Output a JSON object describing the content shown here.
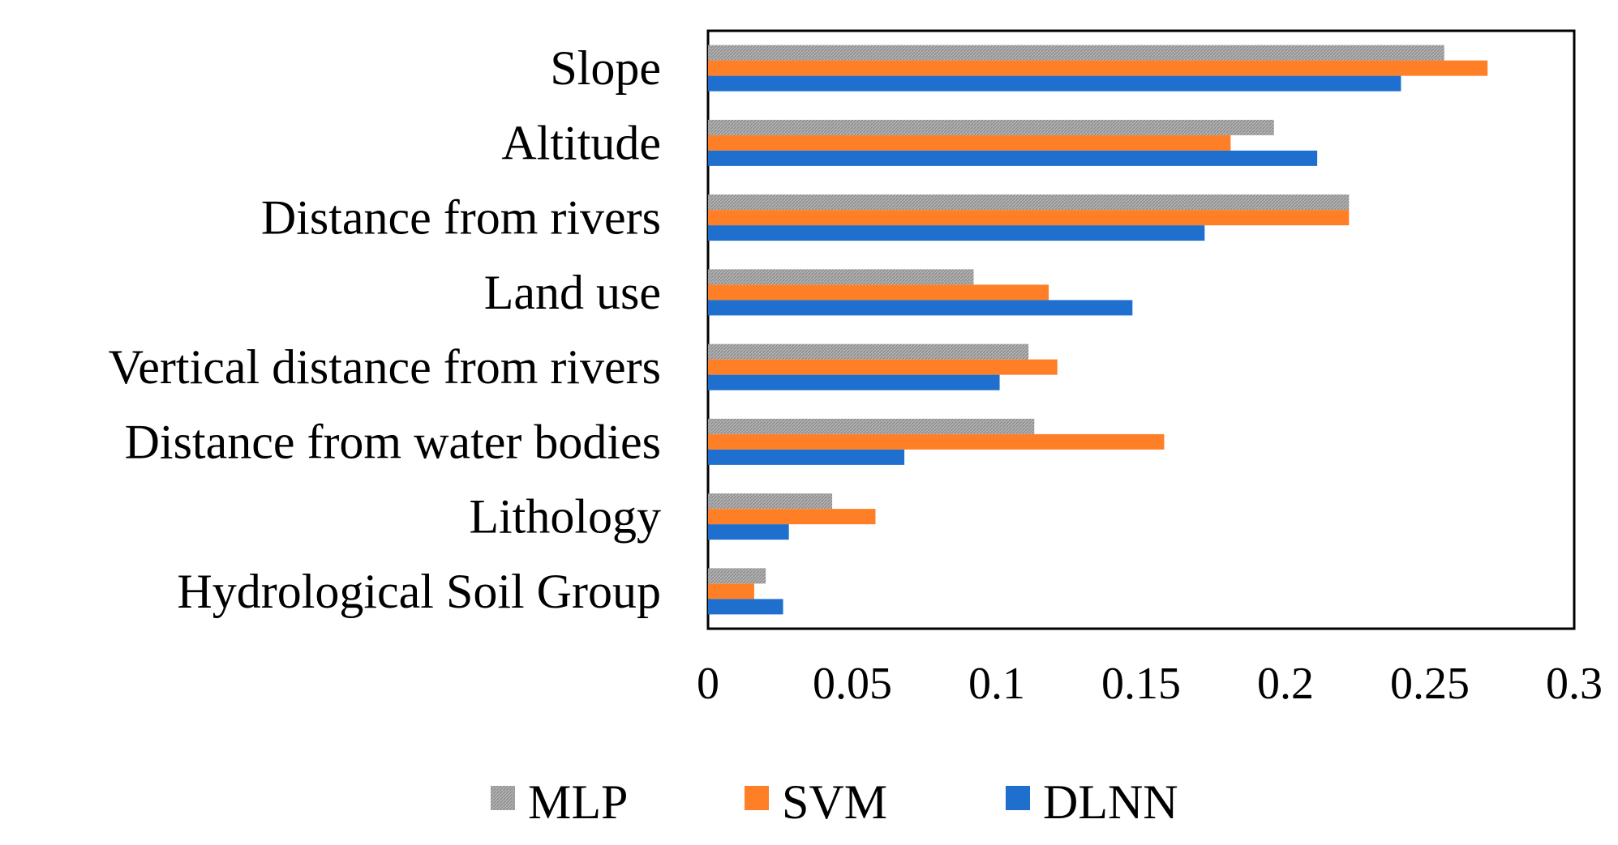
{
  "chart_data": {
    "type": "bar",
    "orientation": "horizontal",
    "title": "",
    "xlabel": "",
    "ylabel": "",
    "categories": [
      "Slope",
      "Altitude",
      "Distance from rivers",
      "Land use",
      "Vertical distance from rivers",
      "Distance from water bodies",
      "Lithology",
      "Hydrological Soil Group"
    ],
    "series": [
      {
        "name": "MLP",
        "color": "#a6a6a6",
        "pattern": "hatched",
        "values": [
          0.255,
          0.196,
          0.222,
          0.092,
          0.111,
          0.113,
          0.043,
          0.02
        ]
      },
      {
        "name": "SVM",
        "color": "#ff7f27",
        "pattern": "solid",
        "values": [
          0.27,
          0.181,
          0.222,
          0.118,
          0.121,
          0.158,
          0.058,
          0.016
        ]
      },
      {
        "name": "DLNN",
        "color": "#1f6fce",
        "pattern": "solid",
        "values": [
          0.24,
          0.211,
          0.172,
          0.147,
          0.101,
          0.068,
          0.028,
          0.026
        ]
      }
    ],
    "xlim": [
      0,
      0.3
    ],
    "xticks": [
      "0",
      "0.05",
      "0.1",
      "0.15",
      "0.2",
      "0.25",
      "0.3"
    ],
    "grid": false,
    "legend_position": "bottom"
  }
}
